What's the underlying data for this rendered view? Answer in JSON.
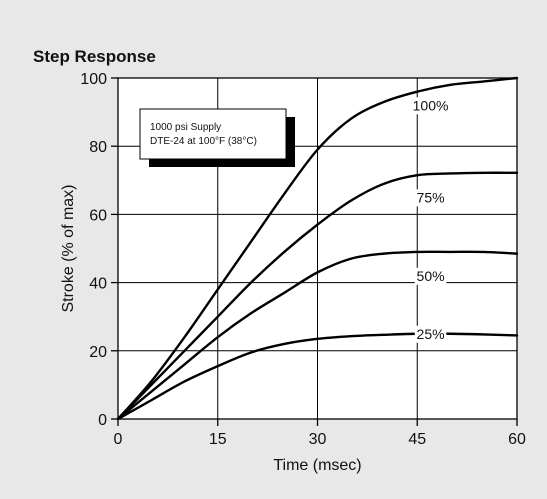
{
  "chart_data": {
    "type": "line",
    "title": "Step Response",
    "xlabel": "Time (msec)",
    "ylabel": "Stroke (% of max)",
    "xlim": [
      0,
      60
    ],
    "ylim": [
      0,
      100
    ],
    "x_ticks": [
      0,
      15,
      30,
      45,
      60
    ],
    "y_ticks": [
      0,
      20,
      40,
      60,
      80,
      100
    ],
    "grid": true,
    "note": {
      "lines": [
        "1000 psi Supply",
        "DTE-24 at 100°F (38°C)"
      ],
      "placement": "top-left"
    },
    "series": [
      {
        "name": "100%",
        "x": [
          0,
          5,
          10,
          15,
          20,
          25,
          30,
          35,
          40,
          45,
          50,
          55,
          60
        ],
        "values": [
          0,
          11,
          24,
          38,
          52,
          66,
          79,
          88,
          93,
          96,
          98,
          99,
          100
        ]
      },
      {
        "name": "75%",
        "x": [
          0,
          5,
          10,
          15,
          20,
          25,
          30,
          35,
          40,
          45,
          50,
          55,
          60
        ],
        "values": [
          0,
          10,
          20,
          30,
          40,
          49,
          57,
          64,
          69,
          71.5,
          72,
          72.2,
          72.2
        ]
      },
      {
        "name": "50%",
        "x": [
          0,
          5,
          10,
          15,
          20,
          25,
          30,
          35,
          40,
          45,
          50,
          55,
          60
        ],
        "values": [
          0,
          8,
          16,
          24,
          31,
          37,
          43,
          47,
          48.5,
          49,
          49,
          49,
          48.5
        ]
      },
      {
        "name": "25%",
        "x": [
          0,
          5,
          10,
          15,
          20,
          25,
          30,
          35,
          40,
          45,
          50,
          55,
          60
        ],
        "values": [
          0,
          5.5,
          11,
          15.5,
          19.5,
          22,
          23.5,
          24.3,
          24.7,
          25,
          25,
          24.8,
          24.5
        ]
      }
    ]
  }
}
